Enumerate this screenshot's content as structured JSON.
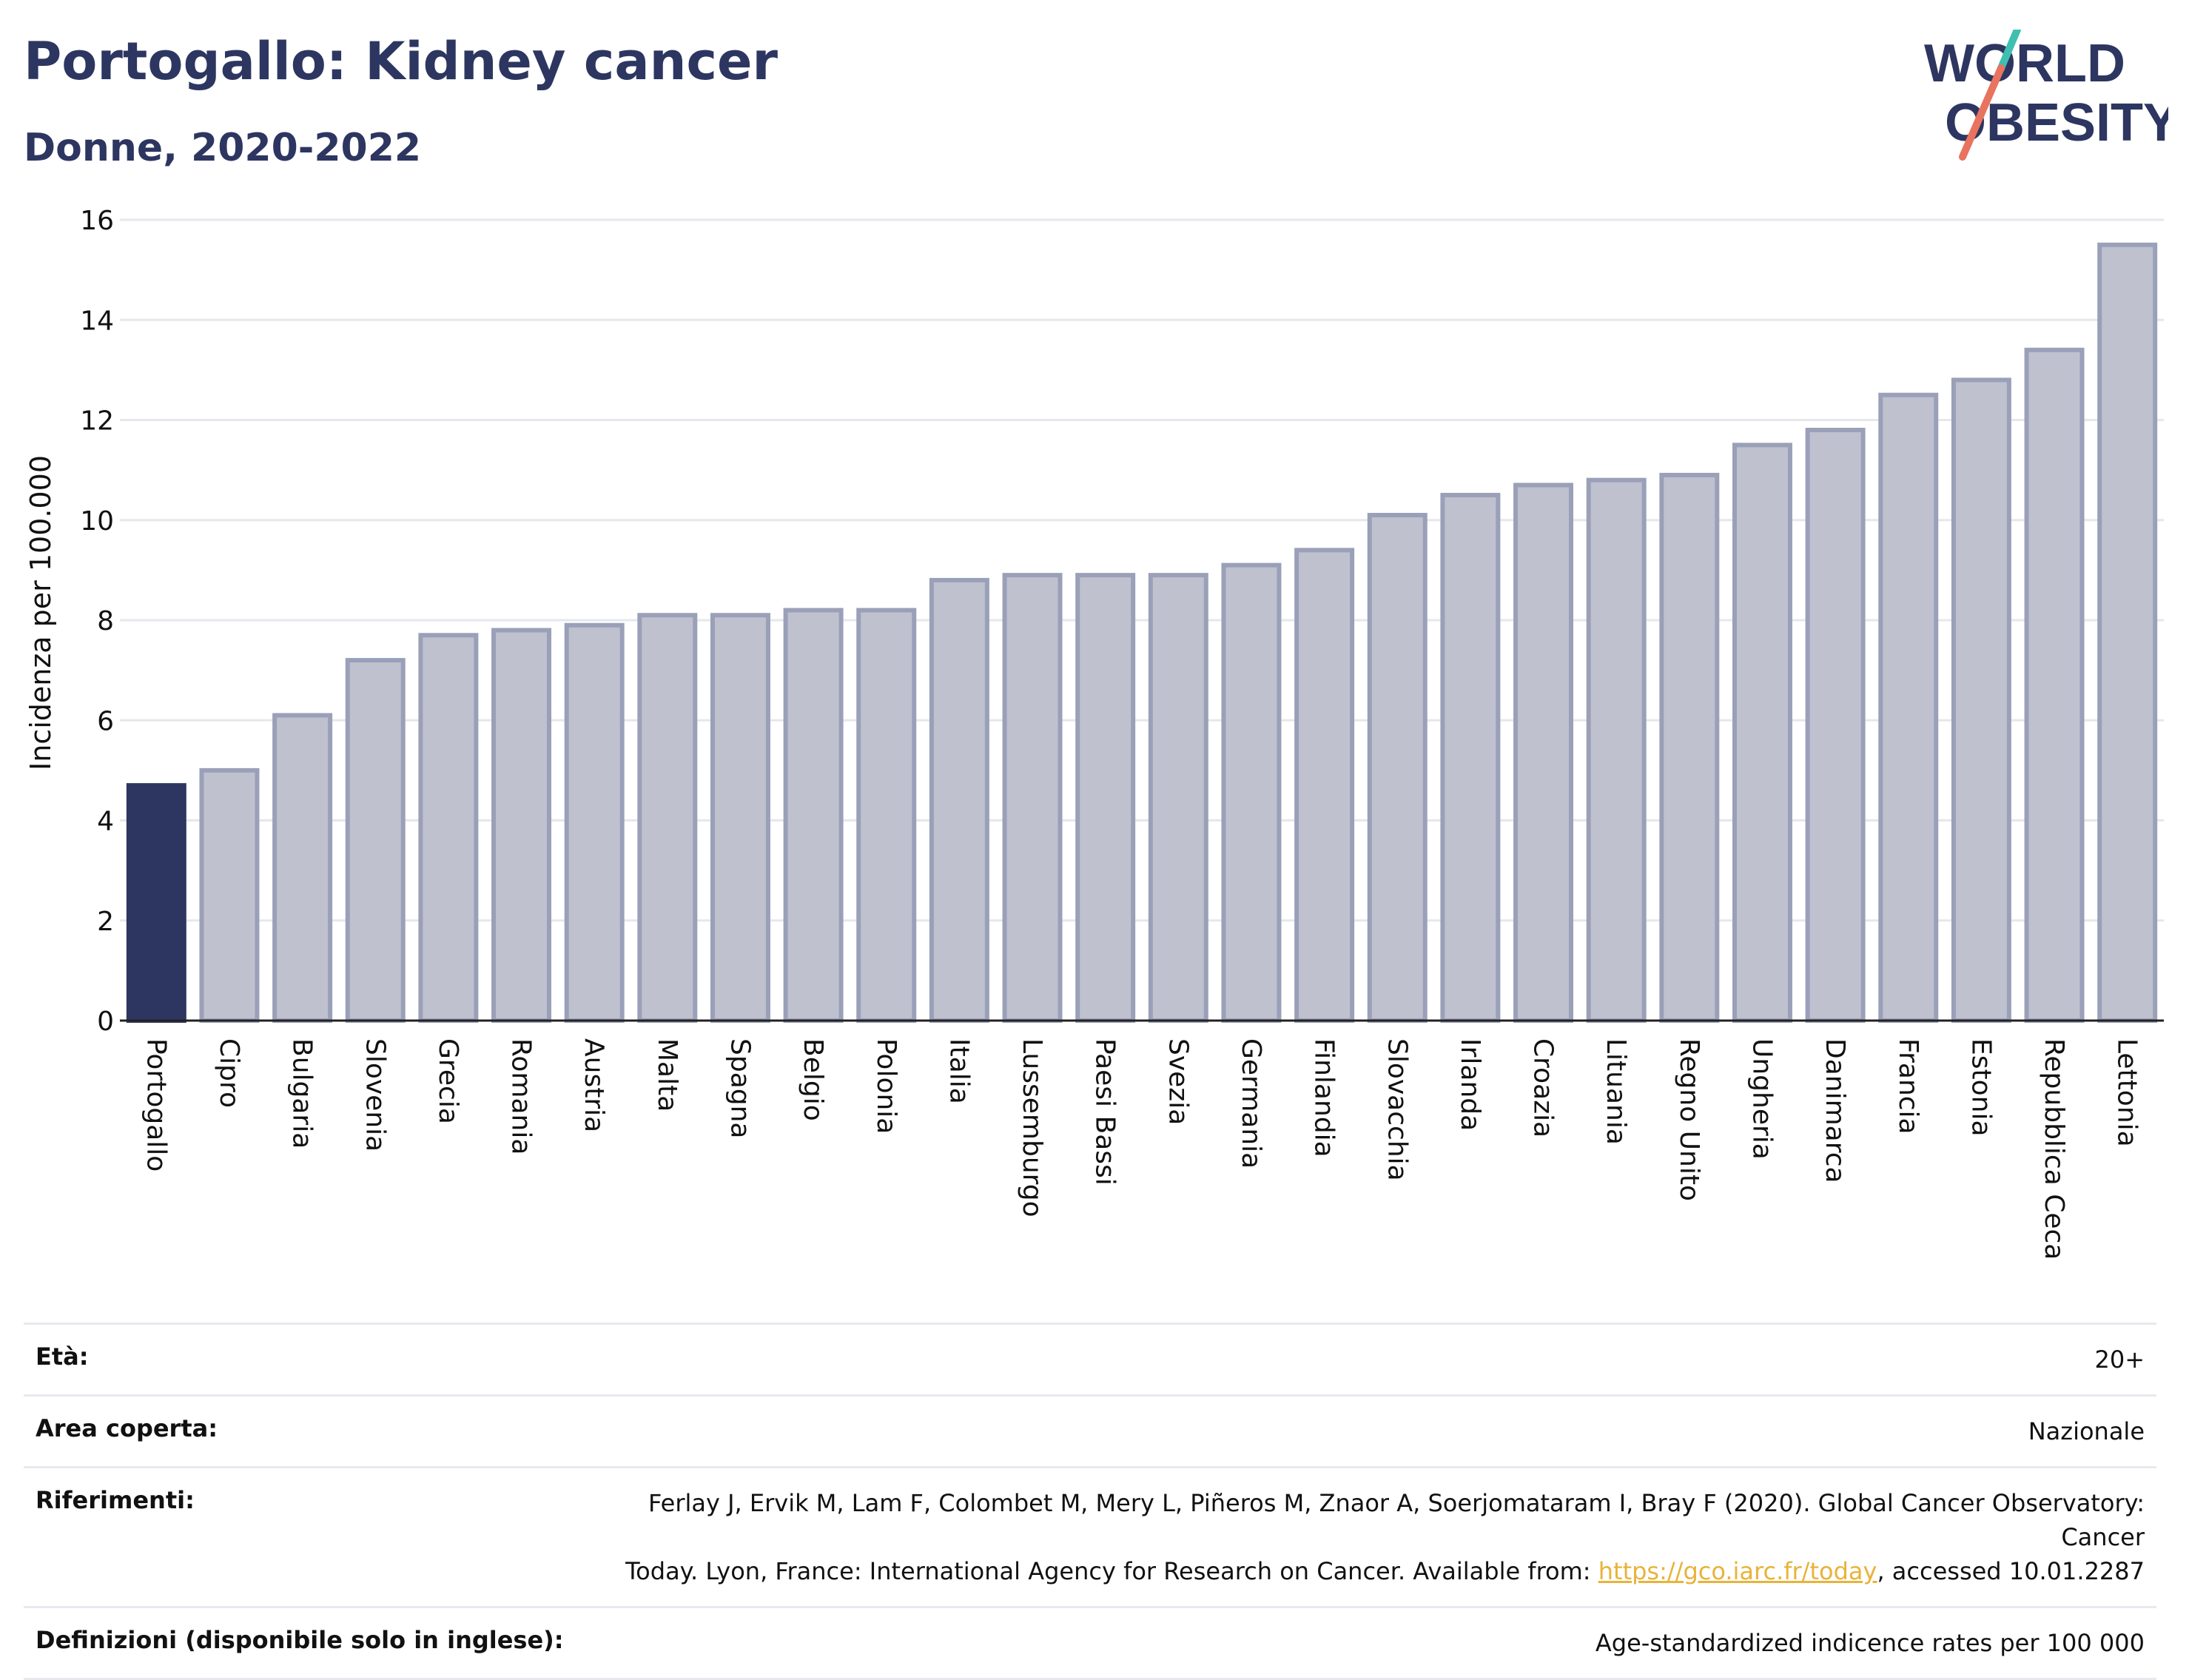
{
  "header": {
    "title": "Portogallo: Kidney cancer",
    "subtitle": "Donne, 2020-2022"
  },
  "logo": {
    "line1": "WORLD",
    "line2": "OBESITY",
    "slash_colors": [
      "#3fbfb0",
      "#e8735e"
    ],
    "text_color": "#2d3660"
  },
  "chart_data": {
    "type": "bar",
    "ylabel": "Incidenza per 100.000",
    "xlabel": "",
    "ylim": [
      0,
      16
    ],
    "yticks": [
      0,
      2,
      4,
      6,
      8,
      10,
      12,
      14,
      16
    ],
    "grid": true,
    "highlight_category": "Portogallo",
    "highlight_color": "#2d3660",
    "bar_color": "#bfc1cf",
    "bar_edge_color": "#9aa0b8",
    "categories": [
      "Portogallo",
      "Cipro",
      "Bulgaria",
      "Slovenia",
      "Grecia",
      "Romania",
      "Austria",
      "Malta",
      "Spagna",
      "Belgio",
      "Polonia",
      "Italia",
      "Lussemburgo",
      "Paesi Bassi",
      "Svezia",
      "Germania",
      "Finlandia",
      "Slovacchia",
      "Irlanda",
      "Croazia",
      "Lituania",
      "Regno Unito",
      "Ungheria",
      "Danimarca",
      "Francia",
      "Estonia",
      "Repubblica Ceca",
      "Lettonia"
    ],
    "values": [
      4.7,
      5.0,
      6.1,
      7.2,
      7.7,
      7.8,
      7.9,
      8.1,
      8.1,
      8.2,
      8.2,
      8.8,
      8.9,
      8.9,
      8.9,
      9.1,
      9.4,
      10.1,
      10.5,
      10.7,
      10.8,
      10.9,
      11.5,
      11.8,
      12.5,
      12.8,
      13.4,
      15.5
    ]
  },
  "info": {
    "age_label": "Età:",
    "age_value": "20+",
    "area_label": "Area coperta:",
    "area_value": "Nazionale",
    "refs_label": "Riferimenti:",
    "refs_line1": "Ferlay J, Ervik M, Lam F, Colombet M, Mery L, Piñeros M, Znaor A, Soerjomataram I, Bray F (2020). Global Cancer Observatory: Cancer",
    "refs_line2_pre": "Today. Lyon, France: International Agency for Research on Cancer. Available from: ",
    "refs_link": "https://gco.iarc.fr/today",
    "refs_line2_post": ", accessed 10.01.2287",
    "defs_label": "Definizioni (disponibile solo in inglese):",
    "defs_value": "Age-standardized indicence rates per 100 000"
  }
}
